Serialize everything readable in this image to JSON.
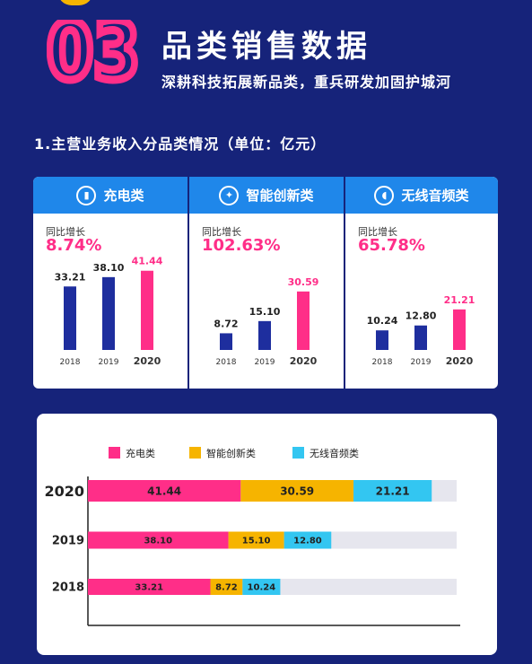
{
  "header": {
    "number": "03",
    "title": "品类销售数据",
    "subtitle": "深耕科技拓展新品类，重兵研发加固护城河"
  },
  "section_title": "1.主营业务收入分品类情况（单位：亿元）",
  "colors": {
    "background": "#16237a",
    "accent_pink": "#ff2e88",
    "accent_yellow": "#f6b400",
    "accent_cyan": "#33c6f1",
    "bar_blue": "#1e2e9e",
    "header_blue": "#1f87ea",
    "track_gray": "#e6e6ee"
  },
  "cards": [
    {
      "title": "充电类",
      "icon": "battery-icon",
      "growth_label": "同比增长",
      "growth": "8.74%"
    },
    {
      "title": "智能创新类",
      "icon": "lightbulb-icon",
      "growth_label": "同比增长",
      "growth": "102.63%"
    },
    {
      "title": "无线音频类",
      "icon": "earphone-icon",
      "growth_label": "同比增长",
      "growth": "65.78%"
    }
  ],
  "chart_data": [
    {
      "type": "bar",
      "categories": [
        "2018",
        "2019",
        "2020"
      ],
      "values": [
        33.21,
        38.1,
        41.44
      ],
      "title": "充电类"
    },
    {
      "type": "bar",
      "categories": [
        "2018",
        "2019",
        "2020"
      ],
      "values": [
        8.72,
        15.1,
        30.59
      ],
      "title": "智能创新类"
    },
    {
      "type": "bar",
      "categories": [
        "2018",
        "2019",
        "2020"
      ],
      "values": [
        10.24,
        12.8,
        21.21
      ],
      "title": "无线音频类"
    },
    {
      "type": "bar",
      "orientation": "horizontal",
      "stacked": true,
      "categories": [
        "2020",
        "2019",
        "2018"
      ],
      "series": [
        {
          "name": "充电类",
          "values": [
            41.44,
            38.1,
            33.21
          ]
        },
        {
          "name": "智能创新类",
          "values": [
            30.59,
            15.1,
            8.72
          ]
        },
        {
          "name": "无线音频类",
          "values": [
            21.21,
            12.8,
            10.24
          ]
        }
      ],
      "xlim": [
        0,
        100
      ],
      "legend": "top"
    }
  ]
}
